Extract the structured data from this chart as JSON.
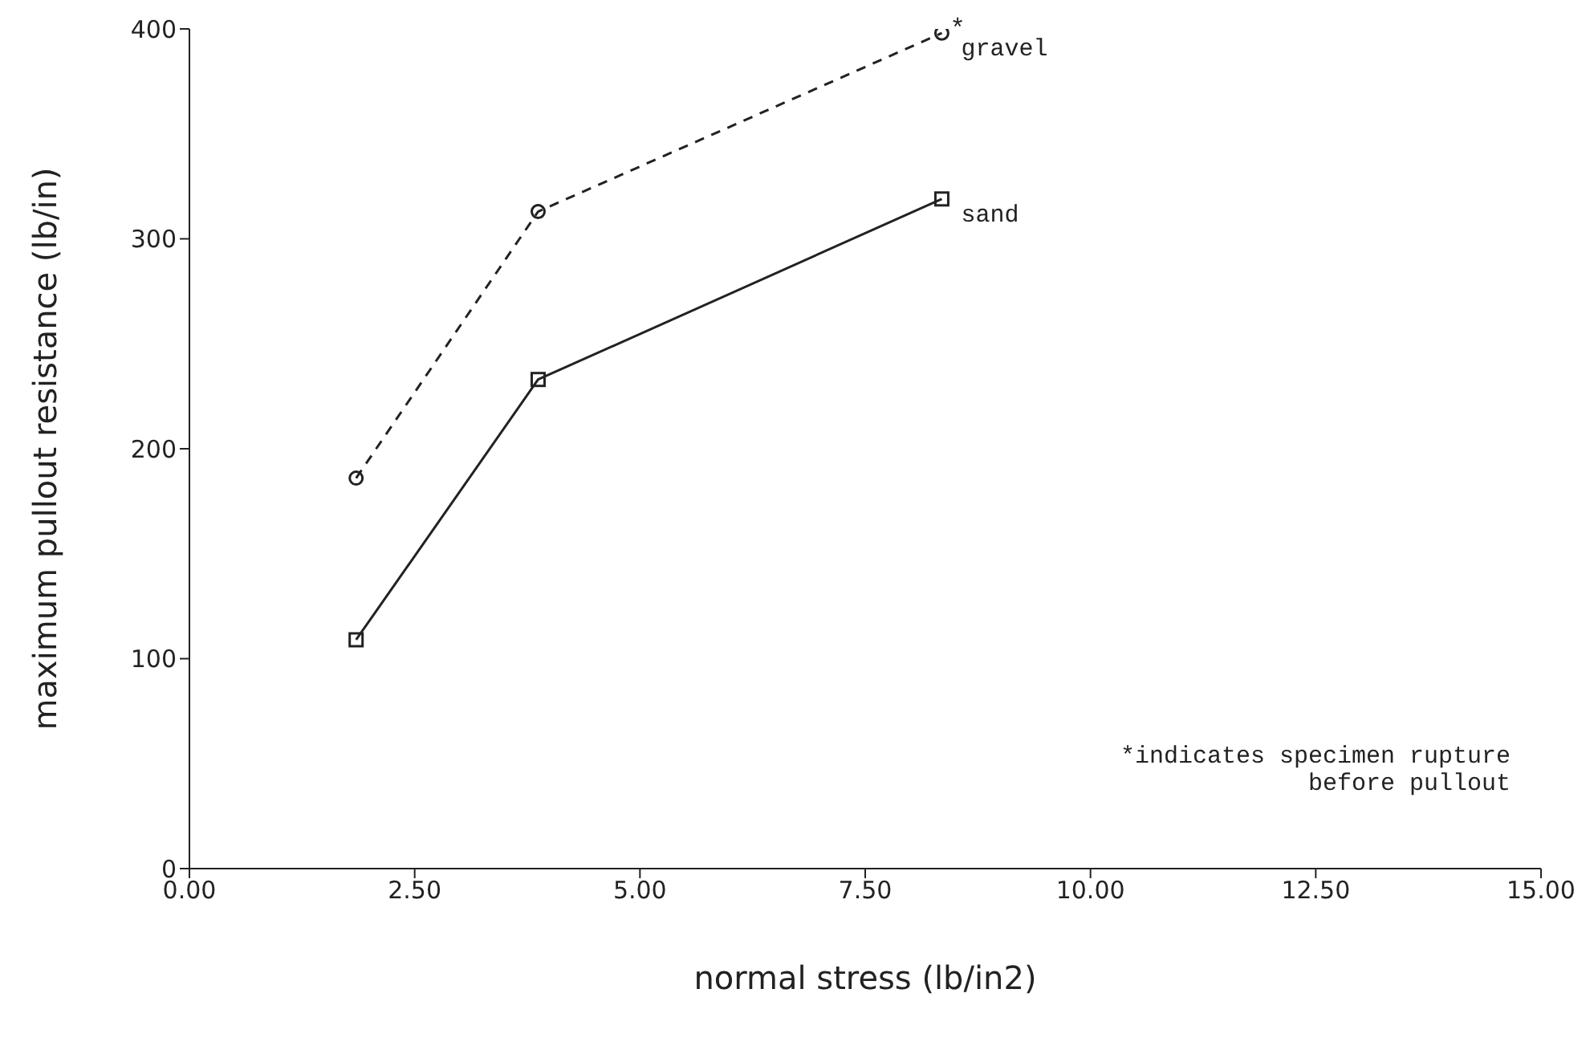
{
  "chart_data": {
    "type": "line",
    "xlabel": "normal stress   (lb/in2)",
    "ylabel": "maximum pullout resistance  (lb/in)",
    "xlim": [
      0,
      15
    ],
    "ylim": [
      0,
      400
    ],
    "xticks": [
      {
        "value": 0,
        "label": "0.00"
      },
      {
        "value": 2.5,
        "label": "2.50"
      },
      {
        "value": 5,
        "label": "5.00"
      },
      {
        "value": 7.5,
        "label": "7.50"
      },
      {
        "value": 10,
        "label": "10.00"
      },
      {
        "value": 12.5,
        "label": "12.50"
      },
      {
        "value": 15,
        "label": "15.00"
      }
    ],
    "yticks": [
      0,
      100,
      200,
      300,
      400
    ],
    "grid": false,
    "legend": false,
    "series": [
      {
        "name": "gravel",
        "color": "#222222",
        "marker": "circle",
        "line_style": "dashed",
        "x": [
          1.85,
          3.87,
          8.35
        ],
        "values": [
          186,
          313,
          398
        ]
      },
      {
        "name": "sand",
        "color": "#222222",
        "marker": "square",
        "line_style": "solid",
        "x": [
          1.85,
          3.87,
          8.35
        ],
        "values": [
          109,
          233,
          319
        ]
      }
    ],
    "annotations": [
      {
        "text": "*",
        "x": 8.35,
        "y": 398
      },
      "*indicates specimen rupture before pullout"
    ]
  }
}
